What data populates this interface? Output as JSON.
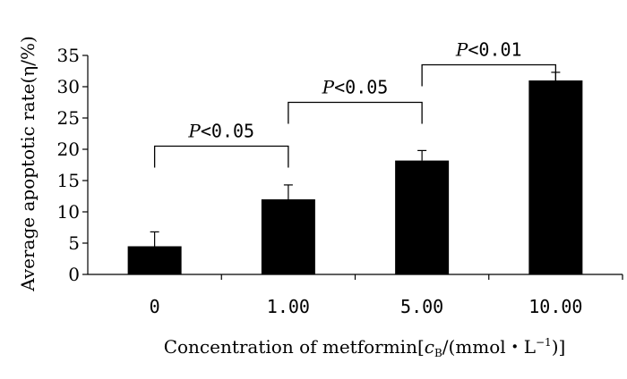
{
  "chart_data": {
    "type": "bar",
    "title": "",
    "categories": [
      "0",
      "1.00",
      "5.00",
      "10.00"
    ],
    "values": [
      4.5,
      12,
      18.2,
      31
    ],
    "error_bars": [
      2.3,
      2.3,
      1.6,
      1.3
    ],
    "ylim": [
      0,
      35
    ],
    "yticks": [
      "0",
      "5",
      "10",
      "15",
      "20",
      "25",
      "30",
      "35"
    ],
    "ylabel": "Average apoptotic rate(η/%)",
    "xlabel": {
      "prefix": "Concentration of metformin[",
      "symbol": "c",
      "subscript": "B",
      "middle": "/(mmol・L",
      "superscript": "−1",
      "suffix": ")]"
    },
    "bar_color": "#000000",
    "annotations": [
      {
        "from": 0,
        "to": 1,
        "text": "P<0.05",
        "level": 20.5
      },
      {
        "from": 1,
        "to": 2,
        "text": "P<0.05",
        "level": 27.5
      },
      {
        "from": 2,
        "to": 3,
        "text": "P<0.01",
        "level": 33.5
      }
    ]
  }
}
